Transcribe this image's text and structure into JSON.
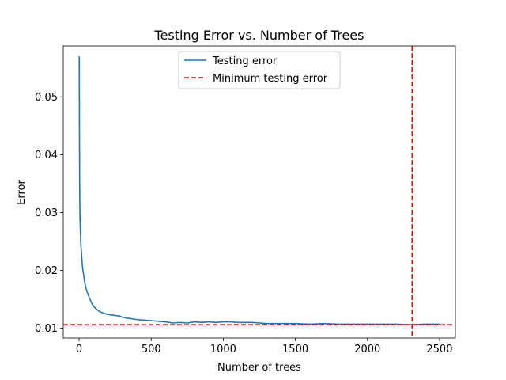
{
  "chart_data": {
    "type": "line",
    "title": "Testing Error vs. Number of Trees",
    "xlabel": "Number of trees",
    "ylabel": "Error",
    "xlim": [
      -110,
      2610
    ],
    "ylim": [
      0.0083,
      0.0588
    ],
    "xticks": [
      0,
      500,
      1000,
      1500,
      2000,
      2500
    ],
    "yticks": [
      0.01,
      0.02,
      0.03,
      0.04,
      0.05
    ],
    "xtick_labels": [
      "0",
      "500",
      "1000",
      "1500",
      "2000",
      "2500"
    ],
    "ytick_labels": [
      "0.01",
      "0.02",
      "0.03",
      "0.04",
      "0.05"
    ],
    "grid": false,
    "legend_position": "upper center",
    "series": [
      {
        "name": "Testing error",
        "color": "#1f77b4",
        "style": "solid",
        "x": [
          1,
          2,
          3,
          4,
          5,
          6,
          8,
          10,
          12,
          15,
          18,
          22,
          26,
          30,
          35,
          40,
          45,
          50,
          55,
          60,
          70,
          80,
          90,
          100,
          120,
          140,
          160,
          180,
          200,
          220,
          250,
          280,
          300,
          350,
          400,
          450,
          500,
          550,
          600,
          650,
          700,
          750,
          800,
          850,
          900,
          950,
          1000,
          1050,
          1100,
          1150,
          1200,
          1250,
          1300,
          1350,
          1400,
          1500,
          1600,
          1700,
          1800,
          1900,
          2000,
          2100,
          2200,
          2300,
          2400,
          2500
        ],
        "y": [
          0.057,
          0.047,
          0.039,
          0.034,
          0.031,
          0.029,
          0.0275,
          0.026,
          0.0245,
          0.0235,
          0.0225,
          0.021,
          0.02,
          0.0195,
          0.0185,
          0.0178,
          0.0172,
          0.0167,
          0.0163,
          0.016,
          0.0153,
          0.0147,
          0.0142,
          0.0138,
          0.0133,
          0.0129,
          0.0127,
          0.0125,
          0.0124,
          0.0123,
          0.0122,
          0.0121,
          0.0119,
          0.0117,
          0.0115,
          0.0114,
          0.0113,
          0.0112,
          0.0111,
          0.0109,
          0.011,
          0.0109,
          0.0111,
          0.011,
          0.0111,
          0.011,
          0.0111,
          0.0111,
          0.011,
          0.011,
          0.011,
          0.0109,
          0.0108,
          0.0108,
          0.0108,
          0.0108,
          0.0107,
          0.0108,
          0.0107,
          0.0107,
          0.0107,
          0.0107,
          0.0107,
          0.0106,
          0.0107,
          0.0107
        ]
      },
      {
        "name": "Minimum testing error",
        "color": "#ff0000",
        "style": "dashed",
        "hline": 0.0106,
        "vline": 2310
      }
    ]
  }
}
